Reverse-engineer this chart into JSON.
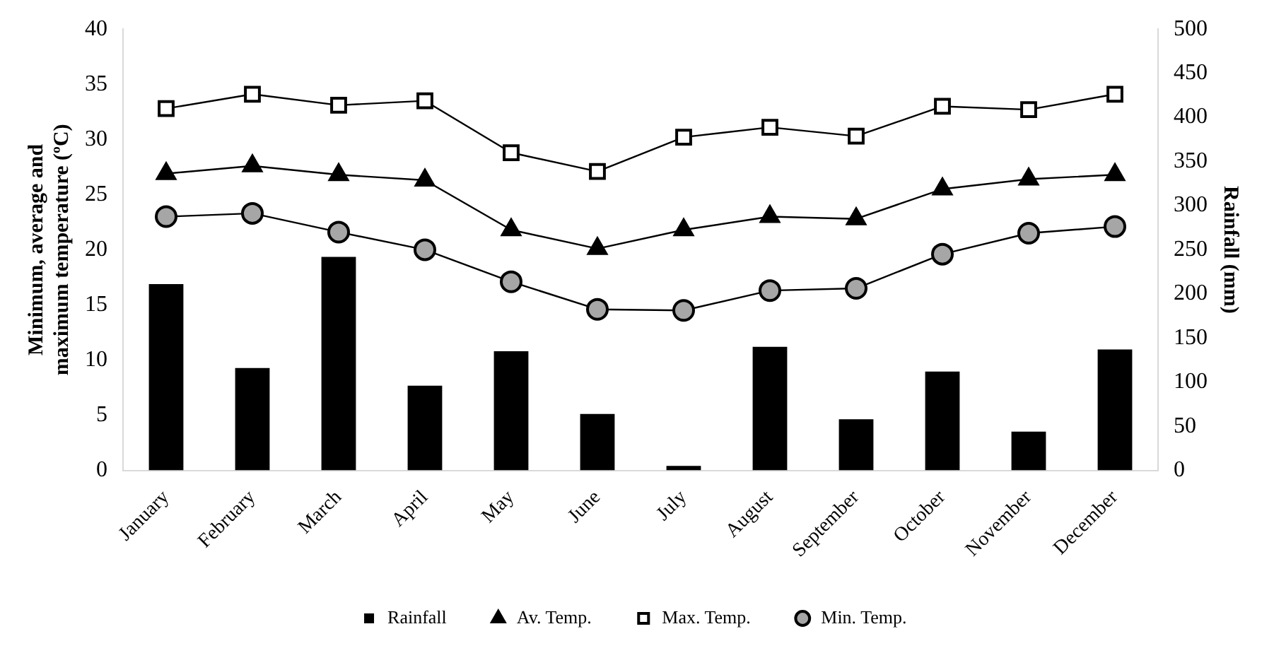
{
  "chart_data": {
    "type": "bar",
    "categories": [
      "January",
      "February",
      "March",
      "April",
      "May",
      "June",
      "July",
      "August",
      "September",
      "October",
      "November",
      "December"
    ],
    "ylabel": "Minimum, average and maximum temperature (ºC)",
    "y2label": "Rainfall (mm)",
    "ylim": [
      0,
      40
    ],
    "yticks": [
      0,
      5,
      10,
      15,
      20,
      25,
      30,
      35,
      40
    ],
    "y2lim": [
      0,
      500
    ],
    "y2ticks": [
      0,
      50,
      100,
      150,
      200,
      250,
      300,
      350,
      400,
      450,
      500
    ],
    "grid": false,
    "legend": "bottom",
    "series": [
      {
        "name": "Rainfall",
        "axis": "y2",
        "color": "#000000",
        "values": [
          211,
          116,
          242,
          96,
          135,
          64,
          5,
          140,
          58,
          112,
          44,
          137
        ]
      },
      {
        "name": "Av. Temp.",
        "type": "line",
        "marker": "triangle",
        "color": "#000000",
        "values": [
          26.9,
          27.6,
          26.8,
          26.3,
          21.8,
          20.1,
          21.8,
          23.0,
          22.8,
          25.5,
          26.4,
          26.8
        ]
      },
      {
        "name": "Max. Temp.",
        "type": "line",
        "marker": "square",
        "color": "#000000",
        "values": [
          32.8,
          34.1,
          33.1,
          33.5,
          28.8,
          27.1,
          30.2,
          31.1,
          30.3,
          33.0,
          32.7,
          34.1
        ]
      },
      {
        "name": "Min. Temp.",
        "type": "line",
        "marker": "circle",
        "color": "#a6a6a6",
        "values": [
          23.0,
          23.3,
          21.6,
          20.0,
          17.1,
          14.6,
          14.5,
          16.3,
          16.5,
          19.6,
          21.5,
          22.1
        ]
      }
    ]
  }
}
